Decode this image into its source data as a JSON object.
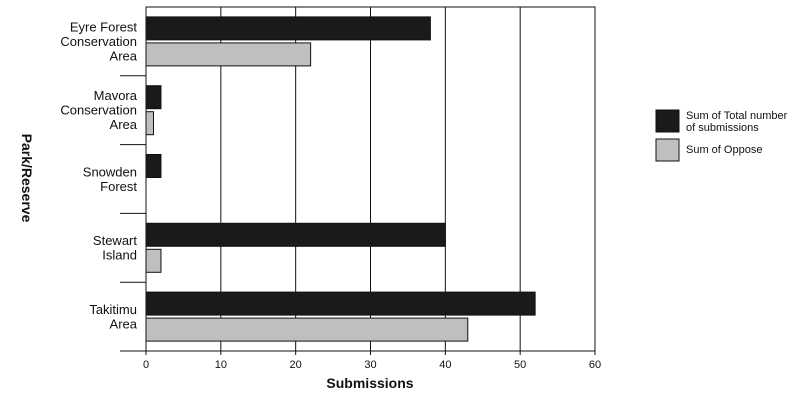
{
  "chart_data": {
    "type": "bar",
    "orientation": "horizontal",
    "categories": [
      [
        "Eyre Forest",
        "Conservation",
        "Area"
      ],
      [
        "Mavora",
        "Conservation",
        "Area"
      ],
      [
        "Snowden",
        "Forest"
      ],
      [
        "Stewart",
        "Island"
      ],
      [
        "Takitimu",
        "Area"
      ]
    ],
    "series": [
      {
        "name": "Sum of Total number of submissions",
        "name_lines": [
          "Sum of Total number",
          "of submissions"
        ],
        "color": "#1a1a1a",
        "values": [
          38,
          2,
          2,
          40,
          52
        ]
      },
      {
        "name": "Sum of Oppose",
        "name_lines": [
          "Sum of Oppose"
        ],
        "color": "#bfbfbf",
        "values": [
          22,
          1,
          0,
          2,
          43
        ]
      }
    ],
    "xlabel": "Submissions",
    "ylabel": "Park/Reserve",
    "xlim": [
      0,
      60
    ],
    "xticks": [
      0,
      10,
      20,
      30,
      40,
      50,
      60
    ],
    "grid": "vertical",
    "legend_position": "right"
  }
}
